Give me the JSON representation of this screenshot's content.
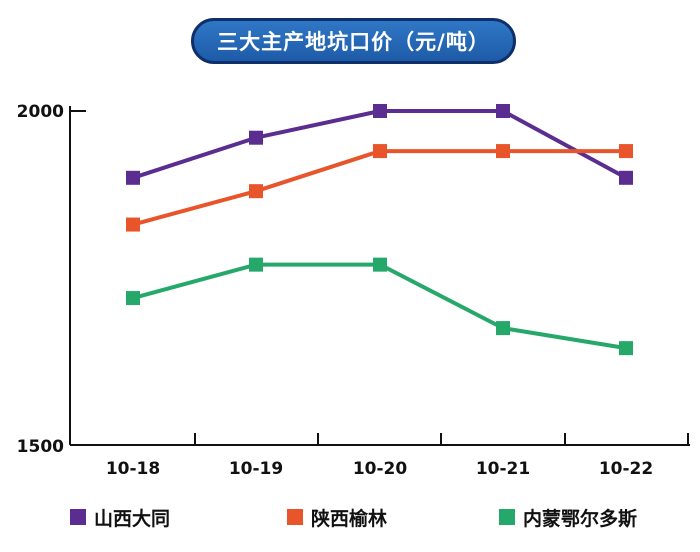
{
  "chart_data": {
    "type": "line",
    "title": "三大主产地坑口价（元/吨）",
    "categories": [
      "10-18",
      "10-19",
      "10-20",
      "10-21",
      "10-22"
    ],
    "ylim": [
      1500,
      2000
    ],
    "yticks": [
      "2000",
      "1500"
    ],
    "series": [
      {
        "name": "山西大同",
        "color": "#5b2d91",
        "values": [
          1900,
          1960,
          2000,
          2000,
          1900
        ]
      },
      {
        "name": "陕西榆林",
        "color": "#e8552b",
        "values": [
          1830,
          1880,
          1940,
          1940,
          1940
        ]
      },
      {
        "name": "内蒙鄂尔多斯",
        "color": "#25a86a",
        "values": [
          1720,
          1770,
          1770,
          1675,
          1645
        ]
      }
    ]
  }
}
